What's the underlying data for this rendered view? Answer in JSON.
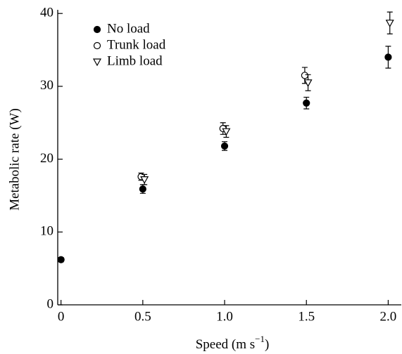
{
  "chart_data": {
    "type": "scatter",
    "xlabel": [
      "Speed (m s",
      "−1",
      ")"
    ],
    "ylabel": "Metabolic rate (W)",
    "xlim": [
      -0.02,
      2.08
    ],
    "ylim": [
      0,
      40.5
    ],
    "xticks": [
      0,
      0.5,
      {
        "value": 1,
        "label": "1.0"
      },
      1.5,
      {
        "value": 2,
        "label": "2.0"
      }
    ],
    "yticks": [
      0,
      10,
      20,
      30,
      40
    ],
    "legend": "upper left",
    "series": [
      {
        "name": "No load",
        "marker": "filled-circle",
        "color": "#000000",
        "x": [
          0,
          0.5,
          1.0,
          1.5,
          2.0
        ],
        "values": [
          6.2,
          15.9,
          21.8,
          27.7,
          34.0
        ],
        "errors": [
          0.3,
          0.6,
          0.6,
          0.8,
          1.5
        ]
      },
      {
        "name": "Trunk load",
        "marker": "open-circle",
        "color": "#000000",
        "x": [
          0.49,
          0.99,
          1.49
        ],
        "values": [
          17.6,
          24.2,
          31.5
        ],
        "errors": [
          0.5,
          0.8,
          1.1
        ]
      },
      {
        "name": "Limb load",
        "marker": "open-triangle-down",
        "color": "#000000",
        "x": [
          0.51,
          1.01,
          1.51,
          2.01
        ],
        "values": [
          17.2,
          23.8,
          30.5,
          38.7
        ],
        "errors": [
          0.7,
          0.8,
          1.1,
          1.5
        ]
      }
    ]
  }
}
